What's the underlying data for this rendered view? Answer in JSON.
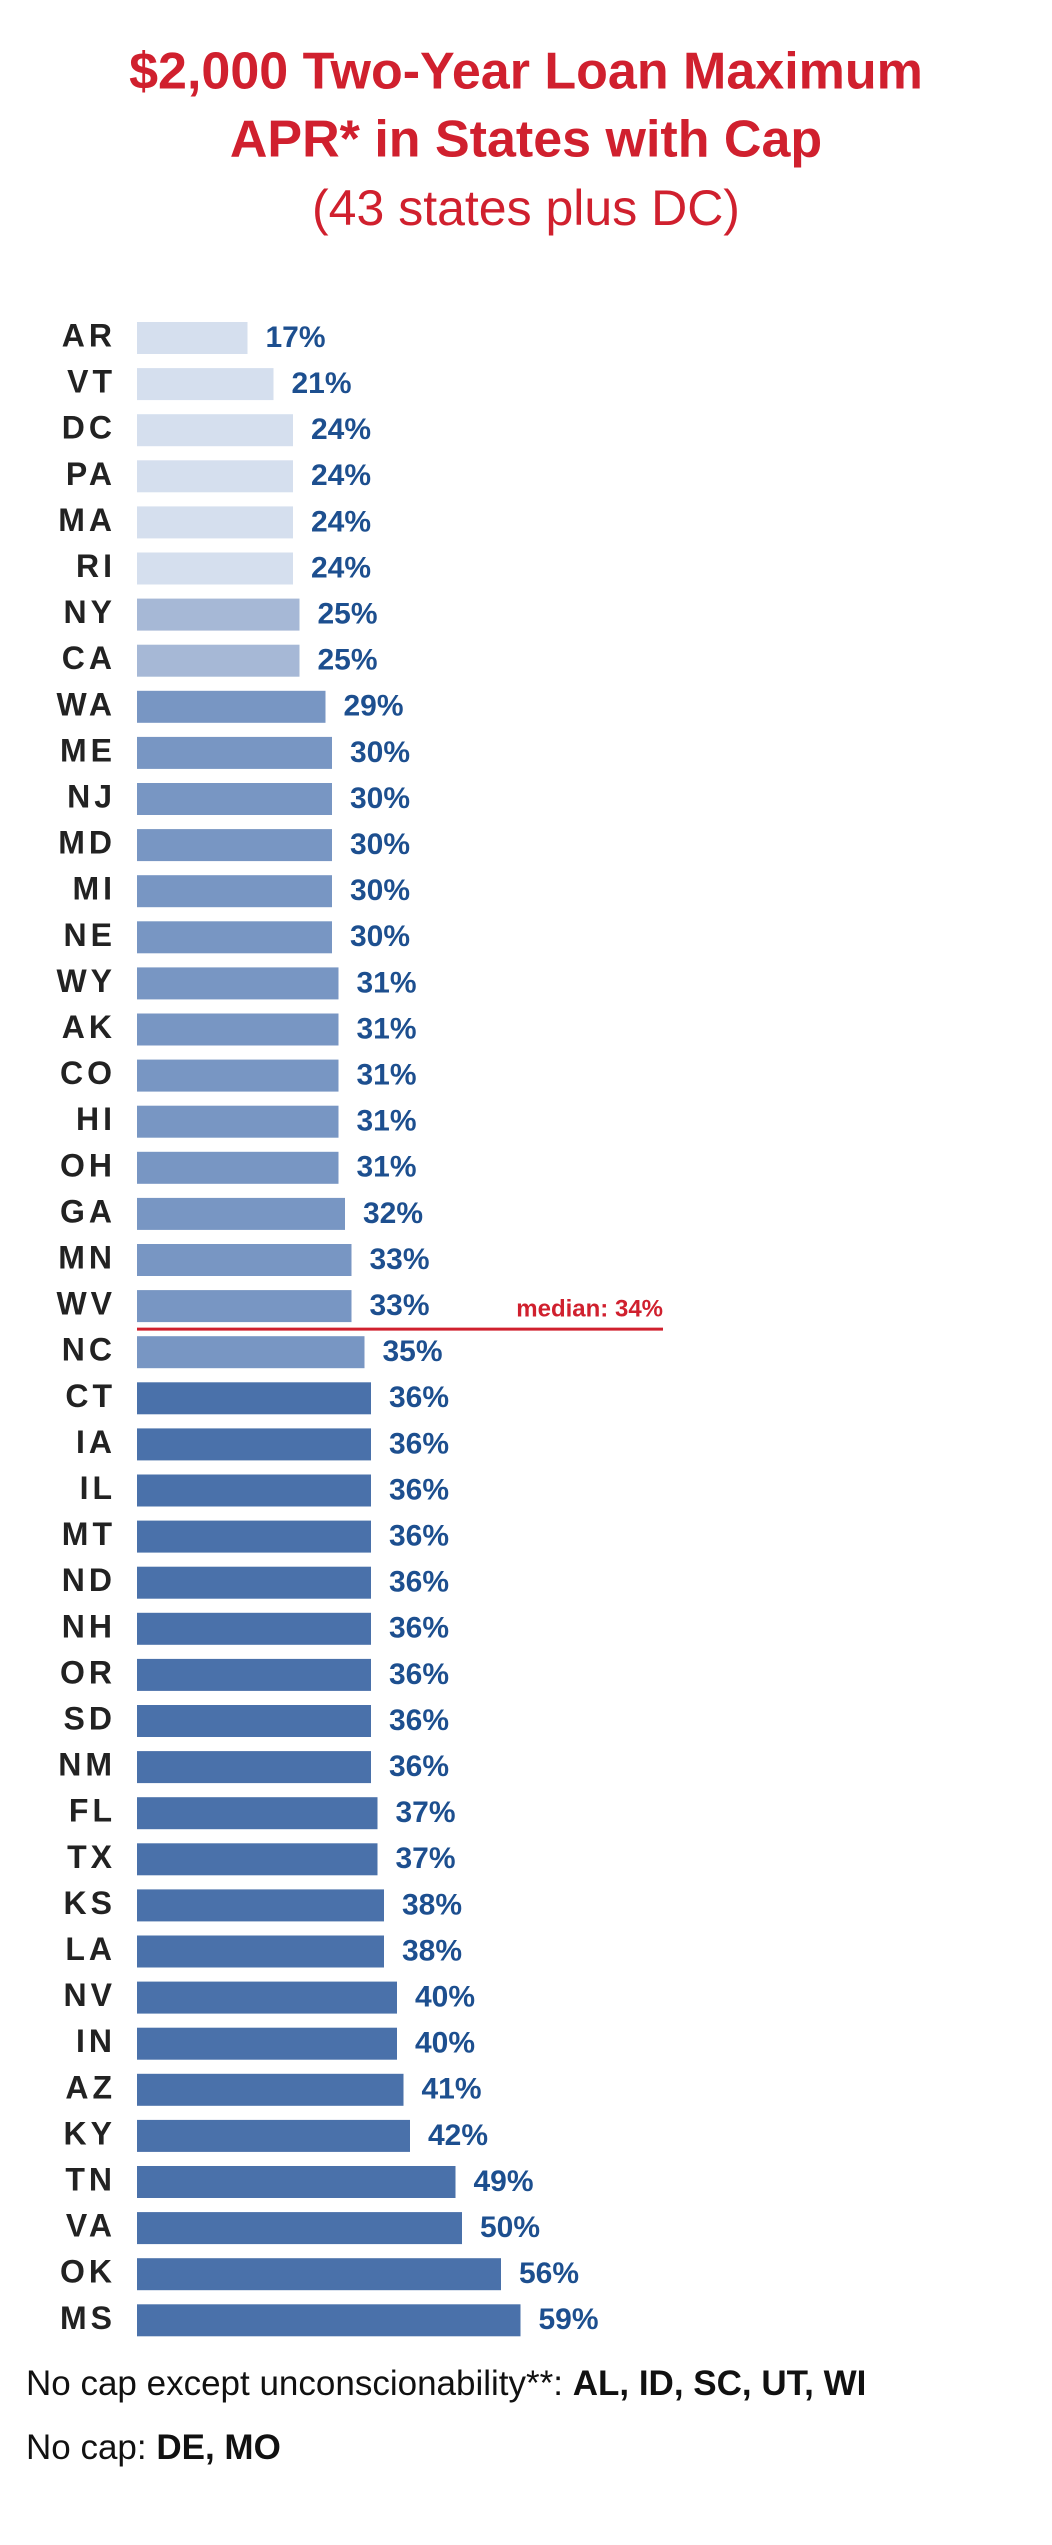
{
  "chart_data": {
    "type": "hbar",
    "title": [
      "$2,000 Two-Year Loan Maximum",
      "APR* in States with Cap"
    ],
    "subtitle": "(43 states plus DC)",
    "categories": [
      "AR",
      "VT",
      "DC",
      "PA",
      "MA",
      "RI",
      "NY",
      "CA",
      "WA",
      "ME",
      "NJ",
      "MD",
      "MI",
      "NE",
      "WY",
      "AK",
      "CO",
      "HI",
      "OH",
      "GA",
      "MN",
      "WV",
      "NC",
      "CT",
      "IA",
      "IL",
      "MT",
      "ND",
      "NH",
      "OR",
      "SD",
      "NM",
      "FL",
      "TX",
      "KS",
      "LA",
      "NV",
      "IN",
      "AZ",
      "KY",
      "TN",
      "VA",
      "OK",
      "MS"
    ],
    "values": [
      17,
      21,
      24,
      24,
      24,
      24,
      25,
      25,
      29,
      30,
      30,
      30,
      30,
      30,
      31,
      31,
      31,
      31,
      31,
      32,
      33,
      33,
      35,
      36,
      36,
      36,
      36,
      36,
      36,
      36,
      36,
      36,
      37,
      37,
      38,
      38,
      40,
      40,
      41,
      42,
      49,
      50,
      56,
      59
    ],
    "value_labels": [
      "17%",
      "21%",
      "24%",
      "24%",
      "24%",
      "24%",
      "25%",
      "25%",
      "29%",
      "30%",
      "30%",
      "30%",
      "30%",
      "30%",
      "31%",
      "31%",
      "31%",
      "31%",
      "31%",
      "32%",
      "33%",
      "33%",
      "35%",
      "36%",
      "36%",
      "36%",
      "36%",
      "36%",
      "36%",
      "36%",
      "36%",
      "36%",
      "37%",
      "37%",
      "38%",
      "38%",
      "40%",
      "40%",
      "41%",
      "42%",
      "49%",
      "50%",
      "56%",
      "59%"
    ],
    "colors": [
      "#d5dfee",
      "#d5dfee",
      "#d5dfee",
      "#d5dfee",
      "#d5dfee",
      "#d5dfee",
      "#a6b8d6",
      "#a6b8d6",
      "#7896c3",
      "#7896c3",
      "#7896c3",
      "#7896c3",
      "#7896c3",
      "#7896c3",
      "#7896c3",
      "#7896c3",
      "#7896c3",
      "#7896c3",
      "#7896c3",
      "#7896c3",
      "#7896c3",
      "#7896c3",
      "#7896c3",
      "#4a71aa",
      "#4a71aa",
      "#4a71aa",
      "#4a71aa",
      "#4a71aa",
      "#4a71aa",
      "#4a71aa",
      "#4a71aa",
      "#4a71aa",
      "#4a71aa",
      "#4a71aa",
      "#4a71aa",
      "#4a71aa",
      "#4a71aa",
      "#4a71aa",
      "#4a71aa",
      "#4a71aa",
      "#4a71aa",
      "#4a71aa",
      "#4a71aa",
      "#4a71aa"
    ],
    "xlim": [
      0,
      60
    ],
    "annotation": "median: 34%",
    "footnotes": [
      {
        "label": "No cap except unconscionability**: ",
        "states": "AL, ID, SC, UT, WI"
      },
      {
        "label": "No cap: ",
        "states": "DE, MO"
      }
    ]
  }
}
